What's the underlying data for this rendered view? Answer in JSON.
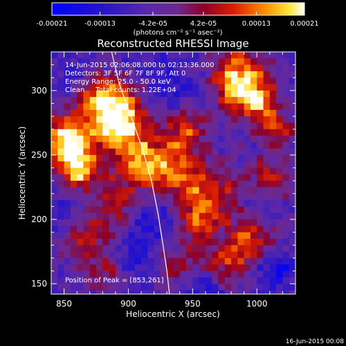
{
  "chart_data": {
    "type": "heatmap",
    "title": "Reconstructed RHESSI Image",
    "xlabel": "Heliocentric X (arcsec)",
    "ylabel": "Heliocentric Y (arcsec)",
    "xlim": [
      840,
      1030
    ],
    "ylim": [
      142,
      330
    ],
    "x_ticks": [
      850,
      900,
      950,
      1000
    ],
    "y_ticks": [
      150,
      200,
      250,
      300
    ],
    "colorbar": {
      "range": [
        -0.00021,
        0.00021
      ],
      "tick_values": [
        -0.00021,
        -0.00013,
        -4.2e-05,
        4.2e-05,
        0.00013,
        0.00021
      ],
      "tick_labels": [
        "-0.00021",
        "-0.00013",
        "-4.2e-05",
        "4.2e-05",
        "0.00013",
        "0.00021"
      ],
      "unit_label": "(photons cm⁻² s⁻¹ asec⁻²)"
    },
    "info_lines": [
      "14-Jun-2015 02:06:08.000 to 02:13:36.000",
      "Detectors: 3F 5F 6F 7F 8F 9F, Att 0",
      "Energy Range: 25.0 - 50.0 keV",
      "Clean     Total counts: 1.22E+04"
    ],
    "peak_text": "Position of Peak = [853,261]",
    "peak": [
      853,
      261
    ],
    "limb": [
      [
        887,
        330
      ],
      [
        893,
        305
      ],
      [
        902,
        280
      ],
      [
        911,
        255
      ],
      [
        918,
        230
      ],
      [
        923,
        205
      ],
      [
        927,
        180
      ],
      [
        930,
        160
      ],
      [
        932,
        142
      ]
    ],
    "hot_spots": [
      {
        "x": 853,
        "y": 261,
        "amp": 1.0,
        "r": 14
      },
      {
        "x": 862,
        "y": 238,
        "amp": 0.8,
        "r": 10
      },
      {
        "x": 876,
        "y": 296,
        "amp": 0.7,
        "r": 14
      },
      {
        "x": 898,
        "y": 282,
        "amp": 0.75,
        "r": 15
      },
      {
        "x": 887,
        "y": 272,
        "amp": 0.6,
        "r": 10
      },
      {
        "x": 905,
        "y": 248,
        "amp": 0.55,
        "r": 14
      },
      {
        "x": 930,
        "y": 240,
        "amp": 0.7,
        "r": 16
      },
      {
        "x": 945,
        "y": 270,
        "amp": 0.6,
        "r": 12
      },
      {
        "x": 960,
        "y": 220,
        "amp": 0.65,
        "r": 18
      },
      {
        "x": 985,
        "y": 308,
        "amp": 1.0,
        "r": 15
      },
      {
        "x": 1000,
        "y": 290,
        "amp": 0.6,
        "r": 10
      },
      {
        "x": 1015,
        "y": 270,
        "amp": 0.55,
        "r": 10
      },
      {
        "x": 1010,
        "y": 230,
        "amp": 0.5,
        "r": 12
      },
      {
        "x": 995,
        "y": 185,
        "amp": 0.6,
        "r": 12
      },
      {
        "x": 975,
        "y": 165,
        "amp": 0.55,
        "r": 12
      },
      {
        "x": 940,
        "y": 165,
        "amp": 0.4,
        "r": 12
      },
      {
        "x": 890,
        "y": 210,
        "amp": 0.5,
        "r": 14
      },
      {
        "x": 865,
        "y": 185,
        "amp": 0.45,
        "r": 12
      },
      {
        "x": 880,
        "y": 160,
        "amp": 0.4,
        "r": 10
      },
      {
        "x": 955,
        "y": 195,
        "amp": 0.45,
        "r": 12
      }
    ],
    "cold_spots": [
      {
        "x": 860,
        "y": 310,
        "amp": 0.6,
        "r": 12
      },
      {
        "x": 915,
        "y": 200,
        "amp": 0.7,
        "r": 14
      },
      {
        "x": 1015,
        "y": 160,
        "amp": 0.8,
        "r": 10
      },
      {
        "x": 1000,
        "y": 215,
        "amp": 0.5,
        "r": 10
      },
      {
        "x": 930,
        "y": 300,
        "amp": 0.5,
        "r": 12
      },
      {
        "x": 850,
        "y": 200,
        "amp": 0.4,
        "r": 10
      },
      {
        "x": 960,
        "y": 150,
        "amp": 0.5,
        "r": 10
      },
      {
        "x": 905,
        "y": 170,
        "amp": 0.55,
        "r": 10
      }
    ]
  },
  "footer": {
    "timestamp": "16-Jun-2015 00:08"
  }
}
